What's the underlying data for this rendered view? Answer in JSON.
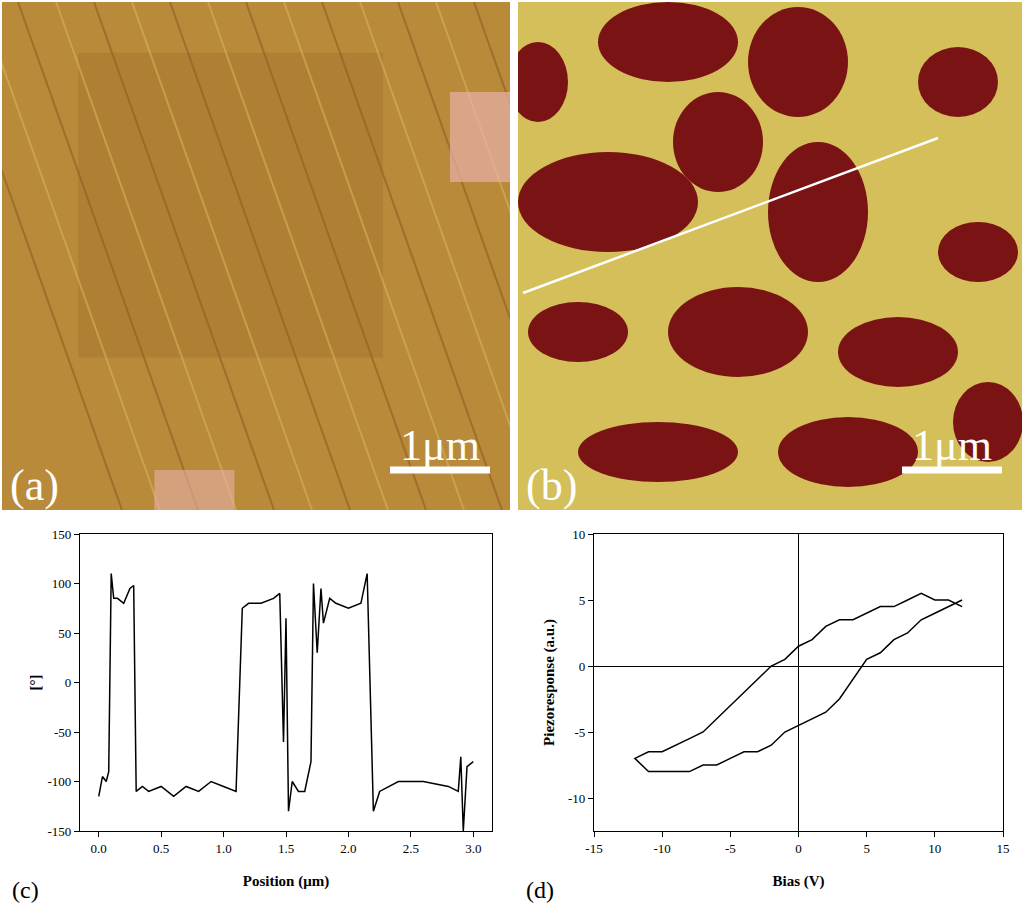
{
  "images": [
    {
      "label": "(a)",
      "scale_bar": "1μm"
    },
    {
      "label": "(b)",
      "scale_bar": "1μm"
    }
  ],
  "chart_data": [
    {
      "type": "line",
      "annotations": [
        "(c)"
      ],
      "x_label": "Position (μm)",
      "y_label": "[°]",
      "x": [
        0,
        0.03,
        0.06,
        0.08,
        0.1,
        0.12,
        0.15,
        0.2,
        0.25,
        0.28,
        0.3,
        0.35,
        0.4,
        0.5,
        0.6,
        0.7,
        0.8,
        0.9,
        1.0,
        1.1,
        1.15,
        1.2,
        1.3,
        1.4,
        1.45,
        1.48,
        1.5,
        1.52,
        1.55,
        1.6,
        1.65,
        1.7,
        1.72,
        1.75,
        1.78,
        1.8,
        1.85,
        1.9,
        2.0,
        2.1,
        2.15,
        2.2,
        2.25,
        2.4,
        2.6,
        2.8,
        2.88,
        2.9,
        2.92,
        2.95,
        3.0
      ],
      "series": [
        {
          "color": "#000000",
          "values": [
            -115,
            -95,
            -100,
            -90,
            110,
            85,
            85,
            80,
            95,
            98,
            -110,
            -105,
            -110,
            -105,
            -115,
            -105,
            -110,
            -100,
            -105,
            -110,
            75,
            80,
            80,
            85,
            90,
            -60,
            65,
            -130,
            -100,
            -110,
            -110,
            -80,
            100,
            30,
            95,
            60,
            85,
            80,
            75,
            80,
            110,
            -130,
            -110,
            -100,
            -100,
            -105,
            -110,
            -75,
            -150,
            -85,
            -80
          ]
        }
      ],
      "xlim": [
        -0.15,
        3.15
      ],
      "xticks": [
        {
          "value": 0,
          "label": "0.0"
        },
        0.5,
        {
          "value": 1,
          "label": "1.0"
        },
        1.5,
        {
          "value": 2,
          "label": "2.0"
        },
        2.5,
        {
          "value": 3,
          "label": "3.0"
        }
      ],
      "ylim": [
        -150,
        150
      ],
      "yticks": [
        -150,
        -100,
        -50,
        0,
        50,
        100,
        150
      ],
      "grid": false
    },
    {
      "type": "line",
      "annotations": [
        "(d)"
      ],
      "x_label": "Bias (V)",
      "y_label": "Piezoresponse (a.u.)",
      "x": [
        12,
        11,
        10,
        9,
        8,
        7,
        6,
        5,
        4,
        3,
        2,
        1,
        0,
        -1,
        -2,
        -3,
        -4,
        -5,
        -6,
        -7,
        -8,
        -9,
        -10,
        -11,
        -12,
        -11,
        -10,
        -9,
        -8,
        -7,
        -6,
        -5,
        -4,
        -3,
        -2,
        -1,
        0,
        1,
        2,
        3,
        4,
        5,
        6,
        7,
        8,
        9,
        10,
        11,
        12
      ],
      "series": [
        {
          "color": "#000000",
          "values": [
            4.5,
            5,
            5,
            5.5,
            5,
            4.5,
            4.5,
            4,
            3.5,
            3.5,
            3,
            2,
            1.5,
            0.5,
            0,
            -1,
            -2,
            -3,
            -4,
            -5,
            -5.5,
            -6,
            -6.5,
            -6.5,
            -7,
            -8,
            -8,
            -8,
            -8,
            -7.5,
            -7.5,
            -7,
            -6.5,
            -6.5,
            -6,
            -5,
            -4.5,
            -4,
            -3.5,
            -2.5,
            -1,
            0.5,
            1,
            2,
            2.5,
            3.5,
            4,
            4.5,
            5
          ]
        }
      ],
      "xlim": [
        -15,
        15
      ],
      "xticks": [
        -15,
        -10,
        -5,
        0,
        5,
        10,
        15
      ],
      "ylim": [
        -12.5,
        10
      ],
      "yticks": [
        -10,
        -5,
        0,
        5,
        10
      ],
      "grid": false
    }
  ]
}
